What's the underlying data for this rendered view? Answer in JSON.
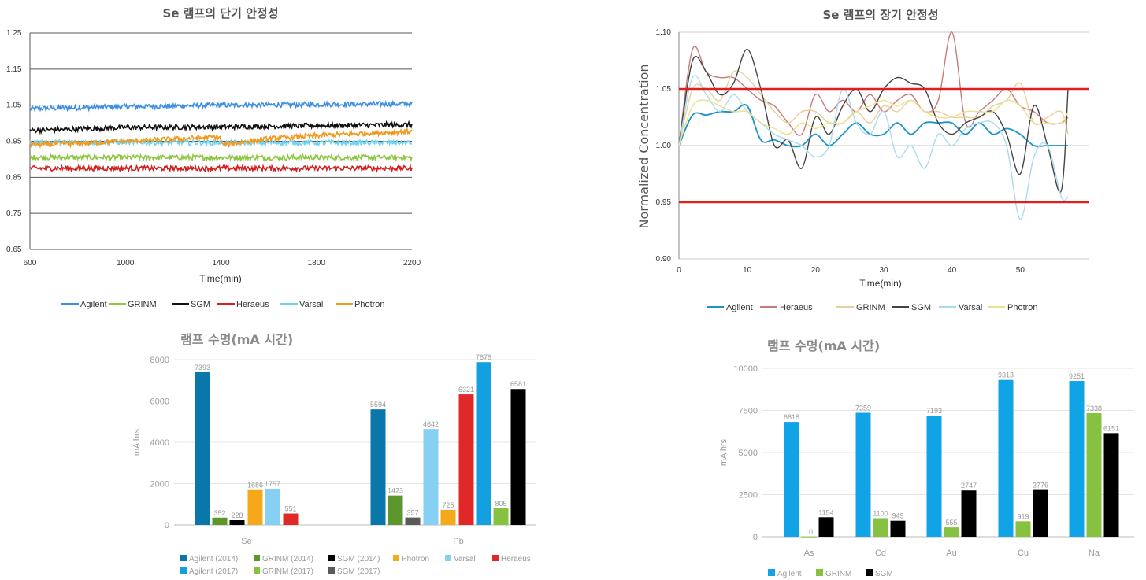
{
  "chart_data": [
    {
      "type": "line",
      "title": "Se 램프의 단기 안정성",
      "xlabel": "Time(min)",
      "ylabel": "",
      "xlim": [
        600,
        2200
      ],
      "ylim": [
        0.65,
        1.25
      ],
      "xticks": [
        "600",
        "1000",
        "1400",
        "1800",
        "2200"
      ],
      "yticks": [
        "0.65",
        "0.75",
        "0.85",
        "0.95",
        "1.05",
        "1.15",
        "1.25"
      ],
      "grid": "horizontal",
      "legend": "bottom",
      "series": [
        {
          "name": "Agilent",
          "color": "#3b8fe6",
          "x": [
            600,
            1000,
            1400,
            1800,
            2200
          ],
          "values": [
            1.04,
            1.046,
            1.05,
            1.052,
            1.054
          ]
        },
        {
          "name": "GRINM",
          "color": "#8dc63f",
          "x": [
            600,
            1000,
            1400,
            1800,
            2200
          ],
          "values": [
            0.905,
            0.905,
            0.905,
            0.905,
            0.905
          ]
        },
        {
          "name": "SGM",
          "color": "#111111",
          "x": [
            600,
            1000,
            1400,
            1800,
            2200
          ],
          "values": [
            0.98,
            0.988,
            0.99,
            0.993,
            0.996
          ]
        },
        {
          "name": "Heraeus",
          "color": "#d42020",
          "x": [
            600,
            1000,
            1400,
            1800,
            2200
          ],
          "values": [
            0.875,
            0.875,
            0.875,
            0.875,
            0.875
          ]
        },
        {
          "name": "Varsal",
          "color": "#6fd3ee",
          "x": [
            600,
            1000,
            1400,
            1800,
            2200
          ],
          "values": [
            0.947,
            0.947,
            0.946,
            0.946,
            0.946
          ]
        },
        {
          "name": "Photron",
          "color": "#f39a1e",
          "x": [
            600,
            800,
            1000,
            1200,
            1395,
            1405,
            1600,
            1800,
            2000,
            2200
          ],
          "values": [
            0.94,
            0.944,
            0.95,
            0.956,
            0.962,
            0.94,
            0.957,
            0.966,
            0.972,
            0.977
          ]
        }
      ]
    },
    {
      "type": "line",
      "title": "Se 램프의 장기 안정성",
      "xlabel": "Time(min)",
      "ylabel": "Normalized Concentration",
      "xlim": [
        0,
        60
      ],
      "ylim": [
        0.9,
        1.1
      ],
      "xticks": [
        "0",
        "10",
        "20",
        "30",
        "40",
        "50"
      ],
      "yticks": [
        "0.90",
        "0.95",
        "1.00",
        "1.05",
        "1.10"
      ],
      "grid": "horizontal",
      "legend": "bottom",
      "limit_lines": {
        "values": [
          0.95,
          1.05
        ],
        "color": "#e02020"
      },
      "series": [
        {
          "name": "Agilent",
          "color": "#1a93c9",
          "x": [
            0,
            2,
            4,
            6,
            8,
            10,
            12,
            14,
            16,
            18,
            20,
            22,
            24,
            26,
            28,
            30,
            32,
            34,
            36,
            38,
            40,
            42,
            44,
            46,
            48,
            50,
            52,
            54,
            56,
            57
          ],
          "values": [
            1.0,
            1.027,
            1.027,
            1.03,
            1.03,
            1.035,
            1.005,
            1.005,
            1.0,
            1.0,
            1.01,
            1.0,
            1.01,
            1.02,
            1.01,
            1.01,
            1.02,
            1.01,
            1.02,
            1.02,
            1.02,
            1.01,
            1.02,
            1.01,
            1.015,
            1.01,
            1.0,
            1.0,
            1.0,
            1.0
          ]
        },
        {
          "name": "Heraeus",
          "color": "#c97a7a",
          "x": [
            0,
            2,
            4,
            6,
            8,
            10,
            12,
            14,
            16,
            18,
            20,
            22,
            24,
            26,
            28,
            30,
            32,
            34,
            36,
            38,
            40,
            42,
            44,
            46,
            48,
            50,
            52,
            54,
            56,
            57
          ],
          "values": [
            1.0,
            1.085,
            1.065,
            1.06,
            1.06,
            1.05,
            1.04,
            1.035,
            1.02,
            1.01,
            1.045,
            1.03,
            1.04,
            1.03,
            1.045,
            1.03,
            1.04,
            1.045,
            1.03,
            1.04,
            1.1,
            1.02,
            1.03,
            1.04,
            1.05,
            1.035,
            1.03,
            1.02,
            1.02,
            1.025
          ]
        },
        {
          "name": "GRINM",
          "color": "#e7d19a",
          "x": [
            0,
            2,
            4,
            6,
            8,
            10,
            12,
            14,
            16,
            18,
            20,
            22,
            24,
            26,
            28,
            30,
            32,
            34,
            36,
            38,
            40,
            42,
            44,
            46,
            48,
            50,
            52,
            54,
            56,
            57
          ],
          "values": [
            1.0,
            1.05,
            1.05,
            1.04,
            1.065,
            1.06,
            1.045,
            1.03,
            1.02,
            1.03,
            1.03,
            1.02,
            1.02,
            1.03,
            1.02,
            1.035,
            1.03,
            1.04,
            1.03,
            1.03,
            1.025,
            1.025,
            1.025,
            1.035,
            1.04,
            1.055,
            1.02,
            1.025,
            1.03,
            1.01
          ]
        },
        {
          "name": "SGM",
          "color": "#444444",
          "x": [
            0,
            2,
            4,
            6,
            8,
            10,
            12,
            14,
            16,
            18,
            20,
            22,
            24,
            26,
            28,
            30,
            32,
            34,
            36,
            38,
            40,
            42,
            44,
            46,
            48,
            50,
            52,
            54,
            56,
            57
          ],
          "values": [
            1.0,
            1.075,
            1.065,
            1.045,
            1.055,
            1.085,
            1.05,
            1.0,
            1.005,
            0.98,
            1.025,
            1.01,
            1.035,
            1.05,
            1.03,
            1.05,
            1.06,
            1.055,
            1.05,
            1.02,
            1.01,
            1.02,
            1.025,
            1.03,
            1.01,
            0.975,
            1.035,
            1.0,
            0.96,
            1.05
          ]
        },
        {
          "name": "Varsal",
          "color": "#a8dcec",
          "x": [
            0,
            2,
            4,
            6,
            8,
            10,
            12,
            14,
            16,
            18,
            20,
            22,
            24,
            26,
            28,
            30,
            32,
            34,
            36,
            38,
            40,
            42,
            44,
            46,
            48,
            50,
            52,
            54,
            56,
            57
          ],
          "values": [
            1.0,
            1.06,
            1.045,
            1.03,
            1.045,
            1.03,
            1.02,
            1.01,
            1.005,
            1.0,
            0.99,
            1.0,
            1.05,
            1.02,
            1.01,
            1.03,
            0.99,
            1.0,
            0.98,
            1.01,
            1.0,
            1.015,
            1.02,
            1.02,
            1.0,
            0.935,
            0.99,
            1.0,
            0.955,
            0.955
          ]
        },
        {
          "name": "Photron",
          "color": "#eedf8a",
          "x": [
            0,
            2,
            4,
            6,
            8,
            10,
            12,
            14,
            16,
            18,
            20,
            22,
            24,
            26,
            28,
            30,
            32,
            34,
            36,
            38,
            40,
            42,
            44,
            46,
            48,
            50,
            52,
            54,
            56,
            57
          ],
          "values": [
            1.0,
            1.035,
            1.04,
            1.035,
            1.03,
            1.03,
            1.02,
            1.015,
            1.01,
            1.02,
            1.015,
            1.02,
            1.02,
            1.03,
            1.035,
            1.04,
            1.035,
            1.04,
            1.03,
            1.025,
            1.025,
            1.03,
            1.03,
            1.03,
            1.04,
            1.035,
            1.02,
            1.02,
            1.02,
            1.03
          ]
        }
      ]
    },
    {
      "type": "bar",
      "title": "램프 수명(mA 시간)",
      "ylabel": "mA hrs",
      "ylim": [
        0,
        8000
      ],
      "yticks": [
        "0",
        "2000",
        "4000",
        "6000",
        "8000"
      ],
      "categories": [
        "Se",
        "Pb"
      ],
      "legend": "bottom",
      "series": [
        {
          "name": "Agilent (2014)",
          "color": "#0a77aa",
          "values": [
            7393,
            5594
          ]
        },
        {
          "name": "GRINM (2014)",
          "color": "#5e962e",
          "values": [
            352,
            1423
          ]
        },
        {
          "name": "SGM (2014)",
          "color": "#000000",
          "values": [
            228,
            null
          ]
        },
        {
          "name": "Photron",
          "color": "#f5a91a",
          "values": [
            1686,
            725
          ]
        },
        {
          "name": "Varsal",
          "color": "#86d1f3",
          "values": [
            1757,
            4642
          ]
        },
        {
          "name": "Heraeus",
          "color": "#e02828",
          "values": [
            551,
            6321
          ]
        },
        {
          "name": "Agilent (2017)",
          "color": "#12a0e0",
          "values": [
            null,
            7878
          ]
        },
        {
          "name": "GRINM (2017)",
          "color": "#86c240",
          "values": [
            null,
            805
          ]
        },
        {
          "name": "SGM (2017)",
          "color": "#5a5a5a",
          "values": [
            null,
            357
          ]
        },
        {
          "name": "",
          "color": "#000000",
          "values": [
            null,
            6581
          ]
        }
      ]
    },
    {
      "type": "bar",
      "title": "램프 수명(mA 시간)",
      "ylabel": "mA hrs",
      "ylim": [
        0,
        10000
      ],
      "yticks": [
        "0",
        "2500",
        "5000",
        "7500",
        "10000"
      ],
      "categories": [
        "As",
        "Cd",
        "Au",
        "Cu",
        "Na"
      ],
      "legend": "bottom",
      "series": [
        {
          "name": "Agilent",
          "color": "#10a3e6",
          "values": [
            6818,
            7359,
            7193,
            9313,
            9251
          ]
        },
        {
          "name": "GRINM",
          "color": "#86c240",
          "values": [
            10,
            1100,
            555,
            919,
            7338
          ]
        },
        {
          "name": "SGM",
          "color": "#000000",
          "values": [
            1154,
            949,
            2747,
            2776,
            6151
          ]
        }
      ]
    }
  ]
}
